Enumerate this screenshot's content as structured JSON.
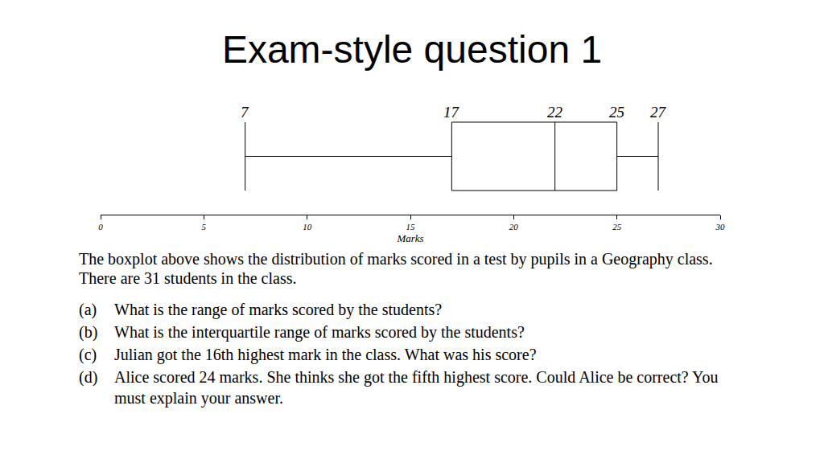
{
  "chart_data": {
    "type": "box",
    "title": "Exam-style question 1",
    "x_label": "Marks",
    "box": {
      "min": 7,
      "q1": 17,
      "median": 22,
      "q3": 25,
      "max": 27
    },
    "color": "#000000",
    "data_labels": true,
    "xlim": [
      0,
      30
    ],
    "xticks": [
      0,
      5,
      10,
      15,
      20,
      25,
      30
    ],
    "grid": false,
    "annotations": [
      {
        "text": "The boxplot above shows the distribution of marks scored in a test by pupils in a Geography class. There are 31 students in the class."
      },
      {
        "label": "(a)",
        "text": "What is the range of marks scored by the students?"
      },
      {
        "label": "(b)",
        "text": "What is the interquartile range of marks scored by the students?"
      },
      {
        "label": "(c)",
        "text": "Julian got the 16th highest mark in the class. What was his score?"
      },
      {
        "label": "(d)",
        "text": "Alice scored 24 marks. She thinks she got the fifth highest score. Could Alice be correct? You must explain your answer."
      }
    ]
  }
}
